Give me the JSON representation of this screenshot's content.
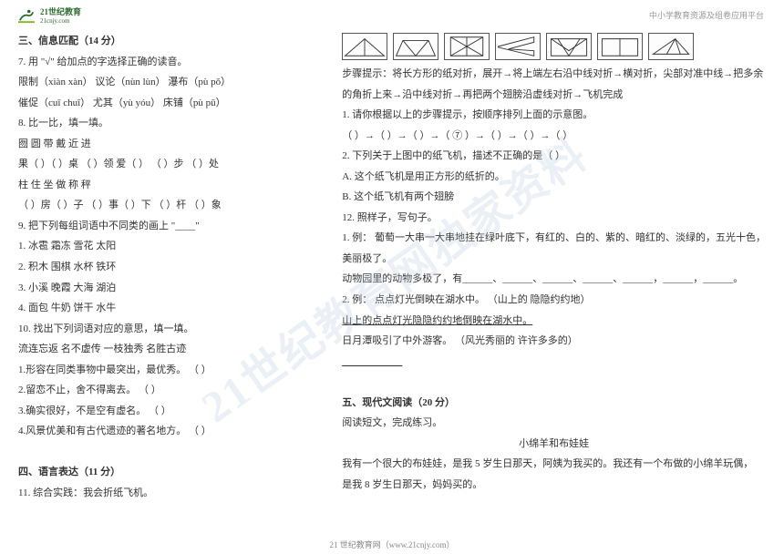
{
  "logo": {
    "brand": "21世纪教育",
    "url": "21cnjy.com"
  },
  "headerRight": "中小学教育资源及组卷应用平台",
  "footer": "21 世纪教育网（www.21cnjy.com）",
  "watermark": "21世纪教育网独家资料",
  "left": {
    "sec3_title": "三、信息匹配（14 分）",
    "q7": "7. 用 \"√\" 给加点的字选择正确的读音。",
    "q7_l1": "限制（xiàn  xàn）      议论（nùn  lùn）      瀑布（pù  pǒ）",
    "q7_l2": "催促（cuī  chuī）      尤其（yù  yóu）      床铺（pù  pū）",
    "q8": "8. 比一比，填一填。",
    "q8_l1": "囫  圆          带  戴          近  进",
    "q8_l2": "果（    ）（    ）桌   （    ）领  爱（    ）   （    ）步  （    ）处",
    "q8_l3": "柱    住        坐    做        称    秤",
    "q8_l4": "（    ）房（    ）子  （    ）事（    ）下   （    ）杆  （    ）象",
    "q9": "9. 把下列每组词语中不同类的画上 \"____\"",
    "q9_l1": "1. 冰雹     霜冻     雪花     太阳",
    "q9_l2": "2. 积木     围棋     水杯     铁环",
    "q9_l3": "3. 小溪     晚霞     大海     湖泊",
    "q9_l4": "4. 面包     牛奶     饼干     水牛",
    "q10": "10. 找出下列词语对应的意思，填一填。",
    "q10_l0": "流连忘返    名不虚传    一枝独秀    名胜古迹",
    "q10_l1": "1.形容在同类事物中最突出，最优秀。      （    ）",
    "q10_l2": "2.留恋不止，舍不得离去。                （    ）",
    "q10_l3": "3.确实很好，不是空有虚名。              （    ）",
    "q10_l4": "4.风景优美和有古代遗迹的著名地方。      （    ）",
    "sec4_title": "四、语言表达（11 分）",
    "q11": "11. 综合实践：我会折纸飞机。"
  },
  "right": {
    "steps": "步骤提示：将长方形的纸对折，展开→将上端左右沿中线对折→横对折，尖部对准中线→把多余",
    "steps2": "的角折上来→沿中线对折→再把两个翅膀沿虚线对折→飞机完成",
    "r1": "1. 请你根据以上的步骤提示，按顺序排列上面的示意图。",
    "r1b": "（    ）→（    ）→（    ）→（  ⑦  ）→（    ）→（    ）→（    ）",
    "r2": "2. 下列关于上图中的纸飞机，描述不正确的是（    ）",
    "r2a": "A.  这个纸飞机是用正方形的纸折的。",
    "r2b": "B.  这个纸飞机有两个翅膀",
    "q12": "12.  照样子，写句子。",
    "q12_1a": "1.  例：  葡萄一大串一大串地挂在绿叶底下，有红的、白的、紫的、暗红的、淡绿的，五光十色，",
    "q12_1b": "美丽极了。",
    "q12_1c": "动物园里的动物多极了，有______、______、______、______、______，______，______。",
    "q12_2a": "2.  例：  点点灯光倒映在湖水中。  （山上的    隐隐约约地）",
    "q12_2b": "山上的点点灯光隐隐约约地倒映在湖水中。",
    "q12_2c": "日月潭吸引了中外游客。  （风光秀丽的    许许多多的）",
    "q12_2d": "____________",
    "sec5_title": "五、现代文阅读（20 分）",
    "read1": "阅读短文，完成练习。",
    "read_title": "小绵羊和布娃娃",
    "read2": "    我有一个很大的布娃娃，是我 5 岁生日那天，阿姨为我买的。我还有一个布做的小绵羊玩偶，",
    "read3": "是我 8 岁生日那天，妈妈买的。"
  },
  "diagrams": [
    {
      "name": "envelope-fold",
      "paths": [
        "M2 26 L48 26 L25 6 Z",
        "M25 6 L25 26"
      ]
    },
    {
      "name": "valley-fold",
      "paths": [
        "M2 26 L48 26 L40 8 L10 8 Z",
        "M10 8 L25 26 L40 8"
      ]
    },
    {
      "name": "square-diag",
      "paths": [
        "M6 4 L44 4 L44 26 L6 26 Z",
        "M6 4 L44 26",
        "M44 4 L6 26",
        "M25 4 L25 26"
      ]
    },
    {
      "name": "plane-side",
      "paths": [
        "M2 15 L44 4 L44 10 L14 18 L44 20 L44 26 L2 16 Z"
      ]
    },
    {
      "name": "pocket-fold",
      "paths": [
        "M4 26 L46 26 L46 6 L4 6 Z",
        "M4 6 L25 20 L46 6",
        "M12 6 L25 26 L38 6"
      ]
    },
    {
      "name": "half-fold",
      "paths": [
        "M4 26 L46 26 L46 6 L4 6 Z",
        "M25 6 L25 26"
      ]
    },
    {
      "name": "wing-fold",
      "paths": [
        "M4 24 L46 24 L30 6 Z",
        "M30 6 L20 24",
        "M30 6 L36 24"
      ]
    }
  ],
  "colors": {
    "text": "#333333",
    "muted": "#999999",
    "brand": "#2d6b2f",
    "watermark": "rgba(180,200,220,0.28)",
    "border": "#555555"
  }
}
